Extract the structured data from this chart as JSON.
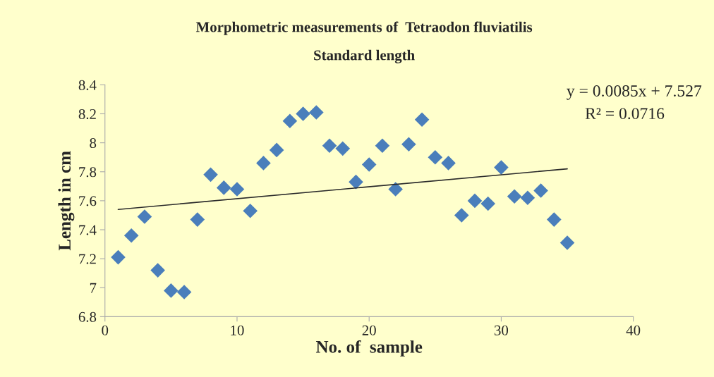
{
  "chart_data": {
    "type": "scatter",
    "title": "Morphometric measurements of  Tetraodon fluviatilis",
    "subtitle": "Standard length",
    "xlabel": "No. of  sample",
    "ylabel": "Length in cm",
    "annotations": [
      "y = 0.0085x + 7.527",
      "R² = 0.0716"
    ],
    "series": [
      {
        "color": "#4a7ebb",
        "marker": "diamond",
        "x": [
          1,
          2,
          3,
          4,
          5,
          6,
          7,
          8,
          9,
          10,
          11,
          12,
          13,
          14,
          15,
          16,
          17,
          18,
          19,
          20,
          21,
          22,
          23,
          24,
          25,
          26,
          27,
          28,
          29,
          30,
          31,
          32,
          33,
          34,
          35
        ],
        "values": [
          7.21,
          7.36,
          7.49,
          7.12,
          6.98,
          6.97,
          7.47,
          7.78,
          7.69,
          7.68,
          7.53,
          7.86,
          7.95,
          8.15,
          8.2,
          8.21,
          7.98,
          7.96,
          7.73,
          7.85,
          7.98,
          7.68,
          7.99,
          8.16,
          7.9,
          7.86,
          7.5,
          7.6,
          7.58,
          7.83,
          7.63,
          7.62,
          7.67,
          7.47,
          7.31
        ]
      },
      {
        "type": "line",
        "color": "#2b2b2b",
        "marker": "none",
        "line_style": "solid",
        "x": [
          1,
          35
        ],
        "values": [
          7.54,
          7.82
        ]
      }
    ],
    "xlim": [
      0,
      40
    ],
    "xticks": [
      0,
      10,
      20,
      30,
      40
    ],
    "ylim": [
      6.8,
      8.4
    ],
    "yticks": [
      6.8,
      7,
      7.2,
      7.4,
      7.6,
      7.8,
      8,
      8.2,
      8.4
    ],
    "grid": false
  }
}
